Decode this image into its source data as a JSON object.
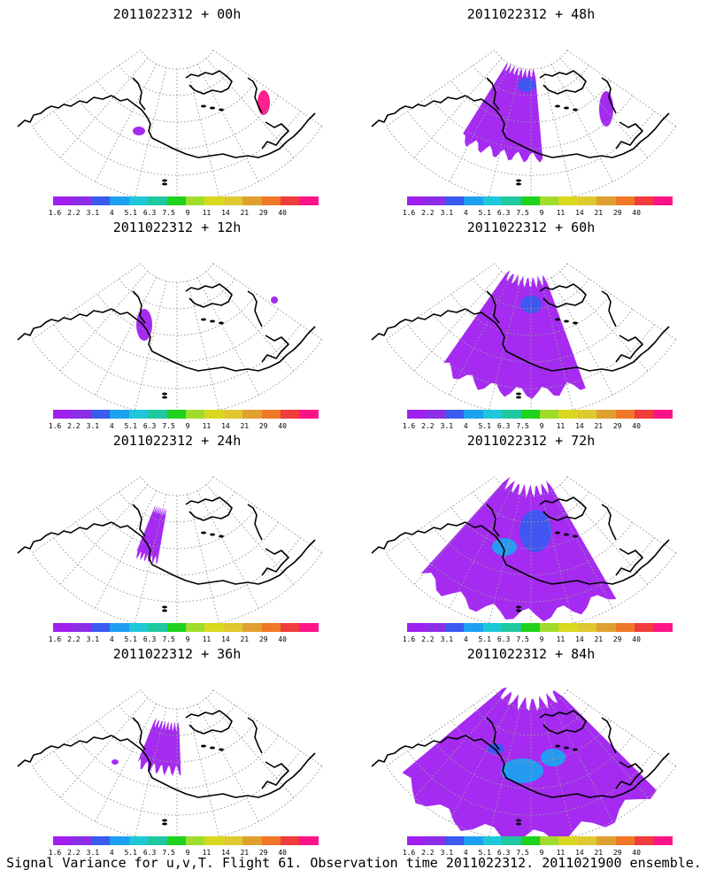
{
  "panels": [
    {
      "title": "2011022312 + 00h",
      "lead": "00h"
    },
    {
      "title": "2011022312 + 48h",
      "lead": "48h"
    },
    {
      "title": "2011022312 + 12h",
      "lead": "12h"
    },
    {
      "title": "2011022312 + 60h",
      "lead": "60h"
    },
    {
      "title": "2011022312 + 24h",
      "lead": "24h"
    },
    {
      "title": "2011022312 + 72h",
      "lead": "72h"
    },
    {
      "title": "2011022312 + 36h",
      "lead": "36h"
    },
    {
      "title": "2011022312 + 84h",
      "lead": "84h"
    }
  ],
  "colorbar": {
    "labels": [
      "1.6",
      "2.2",
      "3.1",
      "4",
      "5.1",
      "6.3",
      "7.5",
      "9",
      "11",
      "14",
      "21",
      "29",
      "40"
    ],
    "colors": [
      "#a020f0",
      "#8c2ee6",
      "#3a5af0",
      "#1ea0f0",
      "#1ec8d8",
      "#20c8a0",
      "#1ed21e",
      "#a0dc2c",
      "#d8d820",
      "#e0c830",
      "#e0a030",
      "#f07828",
      "#f03c3c",
      "#ff1488"
    ]
  },
  "caption": "Signal Variance for u,v,T. Flight 61. Observation time 2011022312. 2011021900 ensemble."
}
